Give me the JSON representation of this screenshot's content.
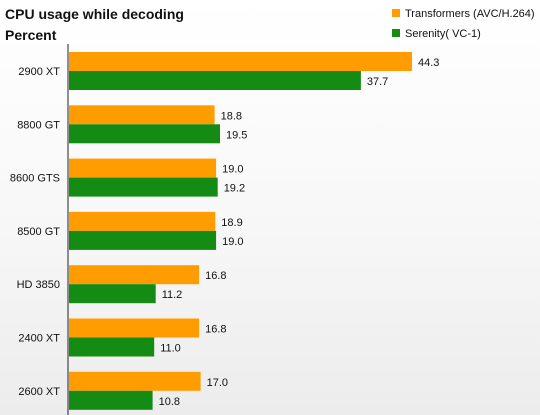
{
  "chart_data": {
    "type": "bar",
    "orientation": "horizontal",
    "title": "CPU usage while decoding",
    "subtitle": "Percent",
    "categories": [
      "2900 XT",
      "8800 GT",
      "8600 GTS",
      "8500 GT",
      "HD 3850",
      "2400 XT",
      "2600 XT"
    ],
    "series": [
      {
        "name": "Transformers (AVC/H.264)",
        "color": "#ff9c00",
        "values": [
          44.3,
          18.8,
          19.0,
          18.9,
          16.8,
          16.8,
          17.0
        ],
        "labels": [
          "44.3",
          "18.8",
          "19.0",
          "18.9",
          "16.8",
          "16.8",
          "17.0"
        ]
      },
      {
        "name": "Serenity( VC-1)",
        "color": "#148c14",
        "values": [
          37.7,
          19.5,
          19.2,
          19.0,
          11.2,
          11.0,
          10.8
        ],
        "labels": [
          "37.7",
          "19.5",
          "19.2",
          "19.0",
          "11.2",
          "11.0",
          "10.8"
        ]
      }
    ],
    "xlim": [
      0,
      46
    ],
    "legend": "top-right",
    "grid": false
  }
}
